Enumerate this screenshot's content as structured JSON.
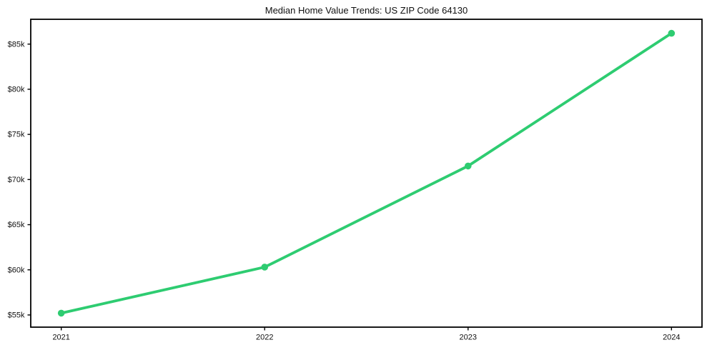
{
  "chart_data": {
    "type": "line",
    "title": "Median Home Value Trends: US ZIP Code 64130",
    "x": [
      2021,
      2022,
      2023,
      2024
    ],
    "values": [
      55200,
      60300,
      71500,
      86200
    ],
    "series_name": "Median Home Value",
    "xlabel": "",
    "ylabel": "",
    "xlim": [
      2020.85,
      2024.15
    ],
    "ylim": [
      53650,
      87750
    ],
    "xticks": [
      {
        "value": 2021,
        "label": "2021"
      },
      {
        "value": 2022,
        "label": "2022"
      },
      {
        "value": 2023,
        "label": "2023"
      },
      {
        "value": 2024,
        "label": "2024"
      }
    ],
    "yticks": [
      {
        "value": 55000,
        "label": "$55k"
      },
      {
        "value": 60000,
        "label": "$60k"
      },
      {
        "value": 65000,
        "label": "$65k"
      },
      {
        "value": 70000,
        "label": "$70k"
      },
      {
        "value": 75000,
        "label": "$75k"
      },
      {
        "value": 80000,
        "label": "$80k"
      },
      {
        "value": 85000,
        "label": "$85k"
      }
    ],
    "grid": false,
    "legend": null,
    "line_color": "#2ecc71",
    "marker": "circle",
    "axis_color": "#000000",
    "background": "#ffffff"
  }
}
